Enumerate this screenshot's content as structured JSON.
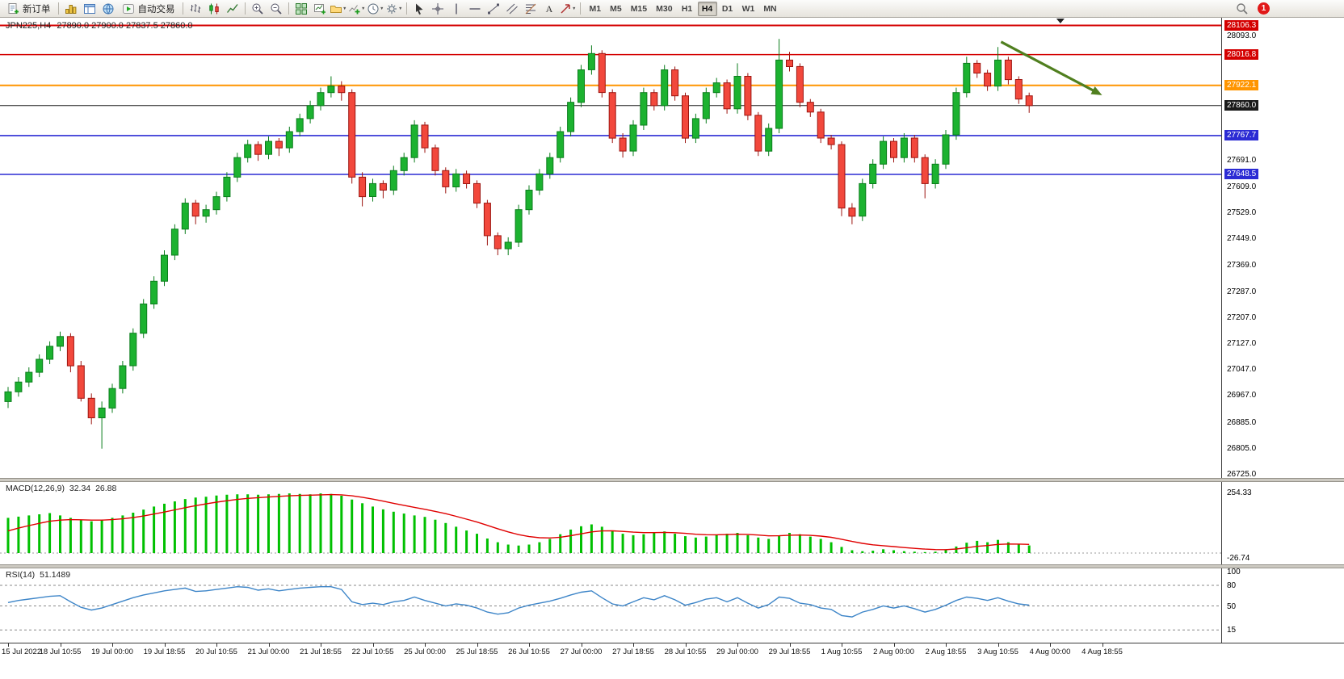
{
  "toolbar": {
    "new_order_label": "新订单",
    "autotrading_label": "自动交易",
    "timeframes": [
      "M1",
      "M5",
      "M15",
      "M30",
      "H1",
      "H4",
      "D1",
      "W1",
      "MN"
    ],
    "active_timeframe": "H4",
    "notification_count": "1"
  },
  "icons": {
    "caret": "▼"
  },
  "chart": {
    "symbol_period": "JPN225,H4",
    "ohlc": "27890.0 27900.0 27837.5 27860.0"
  },
  "macd": {
    "name": "MACD(12,26,9)",
    "main_value": "32.34",
    "signal_value": "26.88"
  },
  "rsi": {
    "name": "RSI(14)",
    "value": "51.1489"
  },
  "chart_data": {
    "type": "candlestick",
    "symbol": "JPN225",
    "timeframe": "H4",
    "main": {
      "ylim": [
        26715,
        28130
      ],
      "levels": [
        {
          "price": 28106.3,
          "label": "28106.3",
          "color": "#d40000",
          "width": 2
        },
        {
          "price": 28016.8,
          "label": "28016.8",
          "color": "#d40000",
          "width": 1.5
        },
        {
          "price": 27922.1,
          "label": "27922.1",
          "color": "#ff9500",
          "width": 2
        },
        {
          "price": 27860.0,
          "label": "27860.0",
          "color": "#1a1a1a",
          "width": 1
        },
        {
          "price": 27767.7,
          "label": "27767.7",
          "color": "#2b2bd4",
          "width": 1.6
        },
        {
          "price": 27648.5,
          "label": "27648.5",
          "color": "#2b2bd4",
          "width": 1.6
        }
      ],
      "ticks": [
        "28093.0",
        "27691.0",
        "27609.0",
        "27529.0",
        "27449.0",
        "27369.0",
        "27287.0",
        "27207.0",
        "27127.0",
        "27047.0",
        "26967.0",
        "26885.0",
        "26805.0",
        "26725.0"
      ]
    },
    "candles": [
      [
        26950,
        26995,
        26930,
        26980
      ],
      [
        26980,
        27025,
        26965,
        27010
      ],
      [
        27010,
        27055,
        26995,
        27040
      ],
      [
        27040,
        27095,
        27025,
        27080
      ],
      [
        27080,
        27135,
        27065,
        27120
      ],
      [
        27120,
        27165,
        27105,
        27150
      ],
      [
        27150,
        27160,
        27040,
        27060
      ],
      [
        27060,
        27075,
        26950,
        26960
      ],
      [
        26960,
        26975,
        26880,
        26900
      ],
      [
        26900,
        26950,
        26805,
        26930
      ],
      [
        26930,
        27005,
        26915,
        26990
      ],
      [
        26990,
        27075,
        26975,
        27060
      ],
      [
        27060,
        27175,
        27045,
        27160
      ],
      [
        27160,
        27265,
        27145,
        27250
      ],
      [
        27250,
        27335,
        27235,
        27320
      ],
      [
        27320,
        27415,
        27305,
        27400
      ],
      [
        27400,
        27495,
        27385,
        27480
      ],
      [
        27480,
        27575,
        27465,
        27560
      ],
      [
        27560,
        27570,
        27495,
        27520
      ],
      [
        27520,
        27555,
        27500,
        27540
      ],
      [
        27540,
        27595,
        27525,
        27580
      ],
      [
        27580,
        27655,
        27565,
        27640
      ],
      [
        27640,
        27715,
        27625,
        27700
      ],
      [
        27700,
        27755,
        27685,
        27740
      ],
      [
        27740,
        27750,
        27690,
        27710
      ],
      [
        27710,
        27765,
        27695,
        27750
      ],
      [
        27750,
        27760,
        27705,
        27730
      ],
      [
        27730,
        27795,
        27715,
        27780
      ],
      [
        27780,
        27835,
        27765,
        27820
      ],
      [
        27820,
        27875,
        27805,
        27860
      ],
      [
        27860,
        27915,
        27845,
        27900
      ],
      [
        27900,
        27950,
        27885,
        27920
      ],
      [
        27920,
        27935,
        27875,
        27900
      ],
      [
        27900,
        27910,
        27620,
        27640
      ],
      [
        27640,
        27655,
        27550,
        27580
      ],
      [
        27580,
        27635,
        27565,
        27620
      ],
      [
        27620,
        27630,
        27575,
        27600
      ],
      [
        27600,
        27675,
        27585,
        27660
      ],
      [
        27660,
        27715,
        27645,
        27700
      ],
      [
        27700,
        27815,
        27685,
        27800
      ],
      [
        27800,
        27810,
        27715,
        27730
      ],
      [
        27730,
        27740,
        27645,
        27660
      ],
      [
        27660,
        27670,
        27590,
        27610
      ],
      [
        27610,
        27665,
        27595,
        27650
      ],
      [
        27650,
        27660,
        27605,
        27620
      ],
      [
        27620,
        27630,
        27545,
        27560
      ],
      [
        27560,
        27570,
        27430,
        27460
      ],
      [
        27460,
        27470,
        27400,
        27420
      ],
      [
        27420,
        27455,
        27400,
        27440
      ],
      [
        27440,
        27555,
        27425,
        27540
      ],
      [
        27540,
        27615,
        27525,
        27600
      ],
      [
        27600,
        27665,
        27585,
        27650
      ],
      [
        27650,
        27715,
        27635,
        27700
      ],
      [
        27700,
        27795,
        27685,
        27780
      ],
      [
        27780,
        27885,
        27765,
        27870
      ],
      [
        27870,
        27985,
        27855,
        27970
      ],
      [
        27970,
        28045,
        27955,
        28020
      ],
      [
        28020,
        28030,
        27885,
        27900
      ],
      [
        27900,
        27910,
        27745,
        27760
      ],
      [
        27760,
        27775,
        27700,
        27720
      ],
      [
        27720,
        27815,
        27705,
        27800
      ],
      [
        27800,
        27915,
        27785,
        27900
      ],
      [
        27900,
        27910,
        27845,
        27860
      ],
      [
        27860,
        27985,
        27845,
        27970
      ],
      [
        27970,
        27980,
        27875,
        27890
      ],
      [
        27890,
        27900,
        27745,
        27760
      ],
      [
        27760,
        27835,
        27745,
        27820
      ],
      [
        27820,
        27915,
        27805,
        27900
      ],
      [
        27900,
        27945,
        27885,
        27930
      ],
      [
        27930,
        27940,
        27835,
        27850
      ],
      [
        27850,
        27990,
        27835,
        27950
      ],
      [
        27950,
        27960,
        27815,
        27830
      ],
      [
        27830,
        27840,
        27705,
        27720
      ],
      [
        27720,
        27805,
        27705,
        27790
      ],
      [
        27790,
        28065,
        27775,
        28000
      ],
      [
        28000,
        28025,
        27965,
        27980
      ],
      [
        27980,
        27990,
        27855,
        27870
      ],
      [
        27870,
        27880,
        27825,
        27840
      ],
      [
        27840,
        27850,
        27745,
        27760
      ],
      [
        27760,
        27770,
        27725,
        27740
      ],
      [
        27740,
        27750,
        27520,
        27545
      ],
      [
        27545,
        27560,
        27495,
        27520
      ],
      [
        27520,
        27635,
        27505,
        27620
      ],
      [
        27620,
        27695,
        27605,
        27680
      ],
      [
        27680,
        27765,
        27665,
        27750
      ],
      [
        27750,
        27760,
        27685,
        27700
      ],
      [
        27700,
        27775,
        27685,
        27760
      ],
      [
        27760,
        27770,
        27685,
        27700
      ],
      [
        27700,
        27710,
        27575,
        27620
      ],
      [
        27620,
        27695,
        27605,
        27680
      ],
      [
        27680,
        27785,
        27665,
        27770
      ],
      [
        27770,
        27915,
        27755,
        27900
      ],
      [
        27900,
        28010,
        27885,
        27990
      ],
      [
        27990,
        28000,
        27945,
        27960
      ],
      [
        27960,
        27970,
        27905,
        27920
      ],
      [
        27920,
        28040,
        27905,
        28000
      ],
      [
        28000,
        28010,
        27925,
        27940
      ],
      [
        27940,
        27950,
        27865,
        27880
      ],
      [
        27890,
        27900,
        27837.5,
        27860
      ]
    ],
    "time_labels": [
      "15 Jul 2022",
      "18 Jul 10:55",
      "19 Jul 00:00",
      "19 Jul 18:55",
      "20 Jul 10:55",
      "21 Jul 00:00",
      "21 Jul 18:55",
      "22 Jul 10:55",
      "25 Jul 00:00",
      "25 Jul 18:55",
      "26 Jul 10:55",
      "27 Jul 00:00",
      "27 Jul 18:55",
      "28 Jul 10:55",
      "29 Jul 00:00",
      "29 Jul 18:55",
      "1 Aug 10:55",
      "2 Aug 00:00",
      "2 Aug 18:55",
      "3 Aug 10:55",
      "4 Aug 00:00",
      "4 Aug 18:55"
    ],
    "macd": {
      "type": "histogram+line",
      "axis_labels": [
        {
          "value": 254.33,
          "label": "254.33"
        },
        {
          "value": -26.74,
          "label": "-26.74"
        }
      ],
      "axis_max": 254.33,
      "signal_start": 80,
      "histogram": [
        150,
        155,
        160,
        165,
        170,
        160,
        150,
        140,
        135,
        140,
        150,
        160,
        172,
        185,
        198,
        210,
        220,
        230,
        236,
        240,
        245,
        248,
        250,
        250,
        248,
        250,
        252,
        254,
        252,
        250,
        254,
        252,
        244,
        228,
        212,
        198,
        186,
        176,
        168,
        160,
        154,
        142,
        128,
        112,
        96,
        82,
        62,
        46,
        36,
        32,
        36,
        46,
        60,
        80,
        100,
        114,
        122,
        112,
        96,
        82,
        76,
        80,
        86,
        92,
        82,
        72,
        66,
        70,
        76,
        82,
        86,
        76,
        66,
        60,
        74,
        86,
        80,
        70,
        60,
        46,
        26,
        12,
        8,
        10,
        16,
        12,
        8,
        6,
        4,
        6,
        14,
        28,
        44,
        52,
        46,
        56,
        46,
        36,
        32.34
      ]
    },
    "rsi": {
      "type": "line",
      "levels": [
        80,
        50,
        15
      ],
      "axis_ticks": [
        {
          "value": 100,
          "label": "100"
        },
        {
          "value": 80,
          "label": "80"
        },
        {
          "value": 50,
          "label": "50"
        },
        {
          "value": 15,
          "label": "15"
        }
      ],
      "values": [
        55,
        58,
        60,
        62,
        64,
        65,
        56,
        48,
        44,
        47,
        52,
        57,
        62,
        66,
        69,
        72,
        74,
        76,
        71,
        72,
        74,
        76,
        78,
        77,
        73,
        75,
        72,
        74,
        76,
        77,
        78,
        78,
        74,
        56,
        52,
        54,
        52,
        56,
        58,
        63,
        58,
        54,
        50,
        53,
        51,
        47,
        41,
        38,
        40,
        47,
        51,
        54,
        57,
        61,
        66,
        70,
        72,
        62,
        53,
        50,
        56,
        62,
        59,
        65,
        59,
        51,
        55,
        60,
        62,
        56,
        62,
        54,
        47,
        52,
        63,
        61,
        54,
        52,
        47,
        45,
        36,
        34,
        41,
        45,
        50,
        47,
        50,
        46,
        41,
        45,
        51,
        58,
        63,
        61,
        58,
        62,
        57,
        53,
        51.1489
      ]
    },
    "annotation_arrow": {
      "i1": 95.3,
      "p1": 28056,
      "i2": 105,
      "p2": 27892
    },
    "shift_marker_index": 101,
    "colors": {
      "up": "#1cb230",
      "up_border": "#0b7d1c",
      "down": "#f2483c",
      "down_border": "#9c1510",
      "macd_hist": "#00c000",
      "macd_signal": "#e00000",
      "rsi_line": "#3d85c8",
      "arrow": "#507f1f"
    }
  }
}
